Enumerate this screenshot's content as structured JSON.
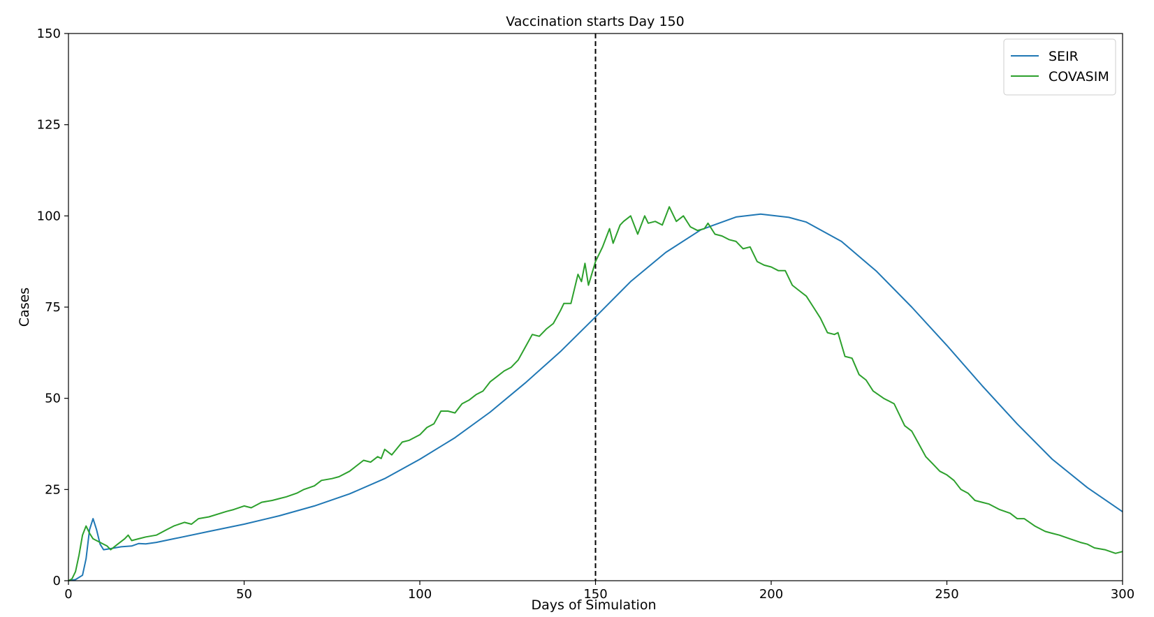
{
  "chart_data": {
    "type": "line",
    "title": "Vaccination starts Day 150",
    "xlabel": "Days of Simulation",
    "ylabel": "Cases",
    "xlim": [
      0,
      300
    ],
    "ylim": [
      0,
      150
    ],
    "xticks": [
      0,
      50,
      100,
      150,
      200,
      250,
      300
    ],
    "yticks": [
      0,
      25,
      50,
      75,
      100,
      125,
      150
    ],
    "grid": false,
    "legend_position": "top-right",
    "vline": {
      "x": 150,
      "style": "dashed",
      "color": "#000000"
    },
    "series": [
      {
        "name": "SEIR",
        "color": "#1f77b4",
        "x": [
          0,
          2,
          4,
          5,
          6,
          7,
          8,
          9,
          10,
          12,
          15,
          18,
          20,
          22,
          25,
          30,
          40,
          50,
          60,
          70,
          80,
          90,
          100,
          110,
          120,
          130,
          140,
          150,
          160,
          170,
          180,
          190,
          197,
          205,
          210,
          220,
          230,
          240,
          250,
          260,
          270,
          280,
          290,
          300
        ],
        "values": [
          0,
          0.3,
          1.5,
          6,
          14,
          17,
          14,
          10,
          8.5,
          8.8,
          9.3,
          9.5,
          10.2,
          10.1,
          10.5,
          11.5,
          13.5,
          15.5,
          17.8,
          20.5,
          23.8,
          28,
          33.3,
          39.2,
          46.2,
          54.2,
          62.8,
          72.3,
          82,
          90,
          96.2,
          99.7,
          100.5,
          99.6,
          98.3,
          93,
          84.8,
          75,
          64.5,
          53.5,
          43,
          33.3,
          25.5,
          18.9
        ]
      },
      {
        "name": "COVASIM",
        "color": "#2ca02c",
        "x": [
          0,
          1,
          2,
          3,
          4,
          5,
          6,
          7,
          8,
          9,
          10,
          11,
          12,
          14,
          16,
          17,
          18,
          20,
          22,
          25,
          28,
          30,
          33,
          35,
          37,
          40,
          45,
          47,
          50,
          52,
          55,
          58,
          60,
          62,
          65,
          67,
          70,
          72,
          75,
          77,
          80,
          84,
          86,
          88,
          89,
          90,
          92,
          95,
          97,
          100,
          102,
          104,
          106,
          108,
          110,
          112,
          114,
          116,
          118,
          120,
          122,
          124,
          126,
          128,
          130,
          132,
          134,
          136,
          138,
          140,
          141,
          143,
          145,
          146,
          147,
          148,
          150,
          152,
          154,
          155,
          157,
          158,
          160,
          162,
          164,
          165,
          167,
          169,
          171,
          173,
          175,
          177,
          179,
          181,
          182,
          184,
          186,
          188,
          190,
          192,
          194,
          196,
          198,
          200,
          202,
          204,
          206,
          208,
          210,
          212,
          214,
          216,
          218,
          219,
          221,
          223,
          225,
          227,
          229,
          232,
          235,
          238,
          240,
          242,
          244,
          246,
          248,
          250,
          252,
          254,
          256,
          258,
          260,
          262,
          265,
          268,
          270,
          272,
          275,
          278,
          280,
          282,
          285,
          288,
          290,
          292,
          295,
          298,
          300
        ],
        "values": [
          0,
          0.5,
          2.5,
          7,
          12.5,
          15,
          13,
          11.5,
          11,
          10.5,
          10,
          9.5,
          8.5,
          10,
          11.5,
          12.5,
          11,
          11.5,
          12,
          12.5,
          14,
          15,
          16,
          15.5,
          17,
          17.5,
          19,
          19.5,
          20.5,
          20,
          21.5,
          22,
          22.5,
          23,
          24,
          25,
          26,
          27.5,
          28,
          28.5,
          30,
          33,
          32.5,
          34,
          33.5,
          36,
          34.5,
          38,
          38.5,
          40,
          42,
          43,
          46.5,
          46.5,
          46,
          48.5,
          49.5,
          51,
          52,
          54.5,
          56,
          57.5,
          58.5,
          60.5,
          64,
          67.5,
          67,
          69,
          70.5,
          74,
          76,
          76,
          84,
          82,
          87,
          81,
          87.5,
          91.5,
          96.5,
          92.5,
          97.5,
          98.5,
          100,
          95,
          100,
          98,
          98.5,
          97.5,
          102.5,
          98.5,
          100,
          97,
          96,
          96.5,
          98,
          95,
          94.5,
          93.5,
          93,
          91,
          91.5,
          87.5,
          86.5,
          86,
          85,
          85,
          81,
          79.5,
          78,
          75,
          72,
          68,
          67.5,
          68,
          61.5,
          61,
          56.5,
          55,
          52,
          50,
          48.5,
          42.5,
          41,
          37.5,
          34,
          32,
          30,
          29,
          27.5,
          25,
          24,
          22,
          21.5,
          21,
          19.5,
          18.5,
          17,
          17,
          15,
          13.5,
          13,
          12.5,
          11.5,
          10.5,
          10,
          9,
          8.5,
          7.5,
          8
        ]
      }
    ]
  }
}
